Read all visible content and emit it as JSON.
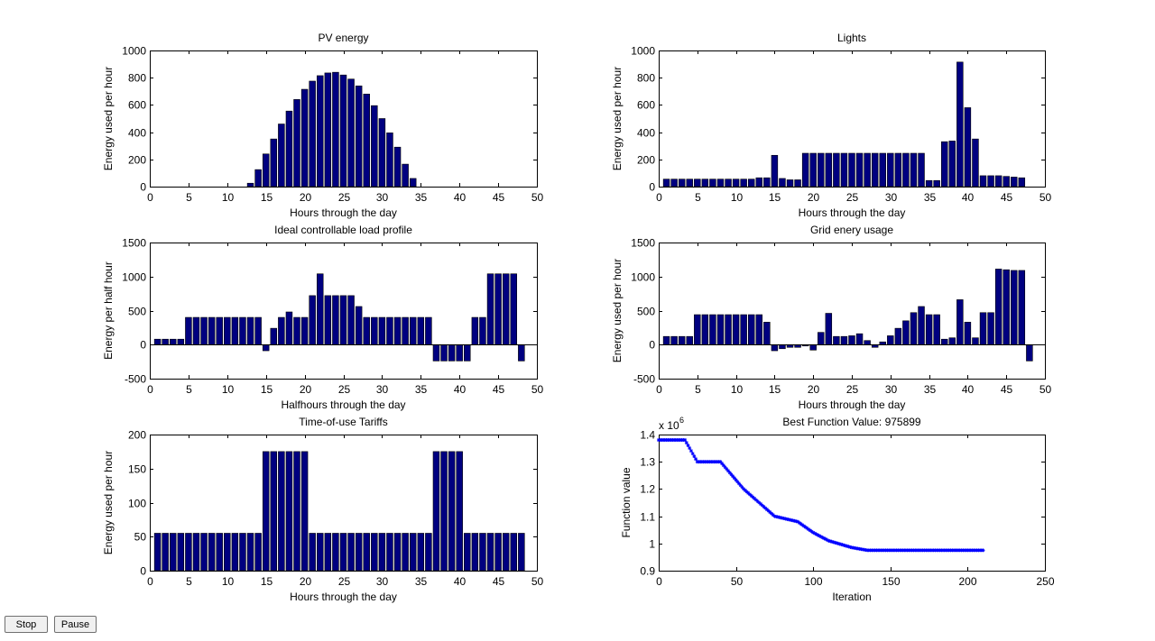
{
  "controls": {
    "stop_label": "Stop",
    "pause_label": "Pause"
  },
  "colors": {
    "bar_fill": "#000080",
    "marker": "#0000ff",
    "axis": "#000000"
  },
  "chart_data": [
    {
      "id": "pv",
      "type": "bar",
      "title": "PV energy",
      "xlabel": "Hours through the day",
      "ylabel": "Energy used per hour",
      "xlim": [
        0,
        50
      ],
      "ylim": [
        0,
        1000
      ],
      "xticks": [
        0,
        5,
        10,
        15,
        20,
        25,
        30,
        35,
        40,
        45,
        50
      ],
      "yticks": [
        0,
        200,
        400,
        600,
        800,
        1000
      ],
      "x": [
        1,
        2,
        3,
        4,
        5,
        6,
        7,
        8,
        9,
        10,
        11,
        12,
        13,
        14,
        15,
        16,
        17,
        18,
        19,
        20,
        21,
        22,
        23,
        24,
        25,
        26,
        27,
        28,
        29,
        30,
        31,
        32,
        33,
        34,
        35,
        36,
        37,
        38,
        39,
        40,
        41,
        42,
        43,
        44,
        45,
        46,
        47,
        48
      ],
      "values": [
        0,
        0,
        0,
        0,
        0,
        0,
        0,
        0,
        0,
        0,
        0,
        0,
        25,
        125,
        240,
        350,
        460,
        555,
        640,
        715,
        775,
        815,
        835,
        840,
        820,
        790,
        740,
        680,
        595,
        500,
        395,
        290,
        165,
        60,
        0,
        0,
        0,
        0,
        0,
        0,
        0,
        0,
        0,
        0,
        0,
        0,
        0,
        0
      ]
    },
    {
      "id": "lights",
      "type": "bar",
      "title": "Lights",
      "xlabel": "Hours through the day",
      "ylabel": "Energy used per hour",
      "xlim": [
        0,
        50
      ],
      "ylim": [
        0,
        1000
      ],
      "xticks": [
        0,
        5,
        10,
        15,
        20,
        25,
        30,
        35,
        40,
        45,
        50
      ],
      "yticks": [
        0,
        200,
        400,
        600,
        800,
        1000
      ],
      "x": [
        1,
        2,
        3,
        4,
        5,
        6,
        7,
        8,
        9,
        10,
        11,
        12,
        13,
        14,
        15,
        16,
        17,
        18,
        19,
        20,
        21,
        22,
        23,
        24,
        25,
        26,
        27,
        28,
        29,
        30,
        31,
        32,
        33,
        34,
        35,
        36,
        37,
        38,
        39,
        40,
        41,
        42,
        43,
        44,
        45,
        46,
        47,
        48
      ],
      "values": [
        55,
        55,
        55,
        55,
        55,
        55,
        55,
        55,
        55,
        55,
        55,
        55,
        65,
        65,
        230,
        60,
        50,
        50,
        245,
        245,
        245,
        245,
        245,
        245,
        245,
        245,
        245,
        245,
        245,
        245,
        245,
        245,
        245,
        245,
        45,
        45,
        330,
        335,
        915,
        580,
        350,
        80,
        80,
        80,
        75,
        70,
        65,
        0
      ]
    },
    {
      "id": "ideal",
      "type": "bar",
      "title": "Ideal controllable load profile",
      "xlabel": "Halfhours through the day",
      "ylabel": "Energy per half hour",
      "xlim": [
        0,
        50
      ],
      "ylim": [
        -500,
        1500
      ],
      "xticks": [
        0,
        5,
        10,
        15,
        20,
        25,
        30,
        35,
        40,
        45,
        50
      ],
      "yticks": [
        -500,
        0,
        500,
        1000,
        1500
      ],
      "x": [
        1,
        2,
        3,
        4,
        5,
        6,
        7,
        8,
        9,
        10,
        11,
        12,
        13,
        14,
        15,
        16,
        17,
        18,
        19,
        20,
        21,
        22,
        23,
        24,
        25,
        26,
        27,
        28,
        29,
        30,
        31,
        32,
        33,
        34,
        35,
        36,
        37,
        38,
        39,
        40,
        41,
        42,
        43,
        44,
        45,
        46,
        47,
        48
      ],
      "values": [
        80,
        80,
        80,
        80,
        400,
        400,
        400,
        400,
        400,
        400,
        400,
        400,
        400,
        400,
        -90,
        240,
        400,
        480,
        400,
        400,
        720,
        1040,
        720,
        720,
        720,
        720,
        560,
        400,
        400,
        400,
        400,
        400,
        400,
        400,
        400,
        400,
        -240,
        -240,
        -240,
        -240,
        -240,
        400,
        400,
        1040,
        1040,
        1040,
        1040,
        -240
      ]
    },
    {
      "id": "grid",
      "type": "bar",
      "title": "Grid enery usage",
      "xlabel": "Hours through the day",
      "ylabel": "Energy used per hour",
      "xlim": [
        0,
        50
      ],
      "ylim": [
        -500,
        1500
      ],
      "xticks": [
        0,
        5,
        10,
        15,
        20,
        25,
        30,
        35,
        40,
        45,
        50
      ],
      "yticks": [
        -500,
        0,
        500,
        1000,
        1500
      ],
      "x": [
        1,
        2,
        3,
        4,
        5,
        6,
        7,
        8,
        9,
        10,
        11,
        12,
        13,
        14,
        15,
        16,
        17,
        18,
        19,
        20,
        21,
        22,
        23,
        24,
        25,
        26,
        27,
        28,
        29,
        30,
        31,
        32,
        33,
        34,
        35,
        36,
        37,
        38,
        39,
        40,
        41,
        42,
        43,
        44,
        45,
        46,
        47,
        48
      ],
      "values": [
        120,
        120,
        120,
        120,
        440,
        440,
        440,
        440,
        440,
        440,
        440,
        440,
        440,
        330,
        -90,
        -60,
        -40,
        -40,
        -20,
        -80,
        180,
        460,
        120,
        120,
        130,
        160,
        60,
        -40,
        40,
        130,
        240,
        350,
        470,
        560,
        440,
        440,
        80,
        100,
        660,
        330,
        100,
        470,
        470,
        1110,
        1100,
        1090,
        1090,
        -240
      ]
    },
    {
      "id": "tariffs",
      "type": "bar",
      "title": "Time-of-use Tariffs",
      "xlabel": "Hours through the day",
      "ylabel": "Energy used per hour",
      "xlim": [
        0,
        50
      ],
      "ylim": [
        0,
        200
      ],
      "xticks": [
        0,
        5,
        10,
        15,
        20,
        25,
        30,
        35,
        40,
        45,
        50
      ],
      "yticks": [
        0,
        50,
        100,
        150,
        200
      ],
      "x": [
        1,
        2,
        3,
        4,
        5,
        6,
        7,
        8,
        9,
        10,
        11,
        12,
        13,
        14,
        15,
        16,
        17,
        18,
        19,
        20,
        21,
        22,
        23,
        24,
        25,
        26,
        27,
        28,
        29,
        30,
        31,
        32,
        33,
        34,
        35,
        36,
        37,
        38,
        39,
        40,
        41,
        42,
        43,
        44,
        45,
        46,
        47,
        48
      ],
      "values": [
        55,
        55,
        55,
        55,
        55,
        55,
        55,
        55,
        55,
        55,
        55,
        55,
        55,
        55,
        175,
        175,
        175,
        175,
        175,
        175,
        55,
        55,
        55,
        55,
        55,
        55,
        55,
        55,
        55,
        55,
        55,
        55,
        55,
        55,
        55,
        55,
        175,
        175,
        175,
        175,
        55,
        55,
        55,
        55,
        55,
        55,
        55,
        55
      ]
    },
    {
      "id": "best",
      "type": "scatter",
      "title": "Best Function Value: 975899",
      "xlabel": "Iteration",
      "ylabel": "Function value",
      "exponent_label": "x 10",
      "exponent_power": "6",
      "xlim": [
        0,
        250
      ],
      "ylim": [
        0.9,
        1.4
      ],
      "xticks": [
        0,
        50,
        100,
        150,
        200,
        250
      ],
      "yticks": [
        0.9,
        1,
        1.1,
        1.2,
        1.3,
        1.4
      ],
      "ytick_labels": [
        "0.9",
        "1",
        "1.1",
        "1.2",
        "1.3",
        "1.4"
      ],
      "curve_points": [
        [
          0,
          1.38
        ],
        [
          17,
          1.38
        ],
        [
          22,
          1.33
        ],
        [
          25,
          1.3
        ],
        [
          40,
          1.3
        ],
        [
          55,
          1.2
        ],
        [
          65,
          1.15
        ],
        [
          75,
          1.1
        ],
        [
          90,
          1.08
        ],
        [
          100,
          1.04
        ],
        [
          110,
          1.01
        ],
        [
          125,
          0.985
        ],
        [
          135,
          0.975
        ],
        [
          210,
          0.975
        ]
      ],
      "marker_count": 211
    }
  ]
}
